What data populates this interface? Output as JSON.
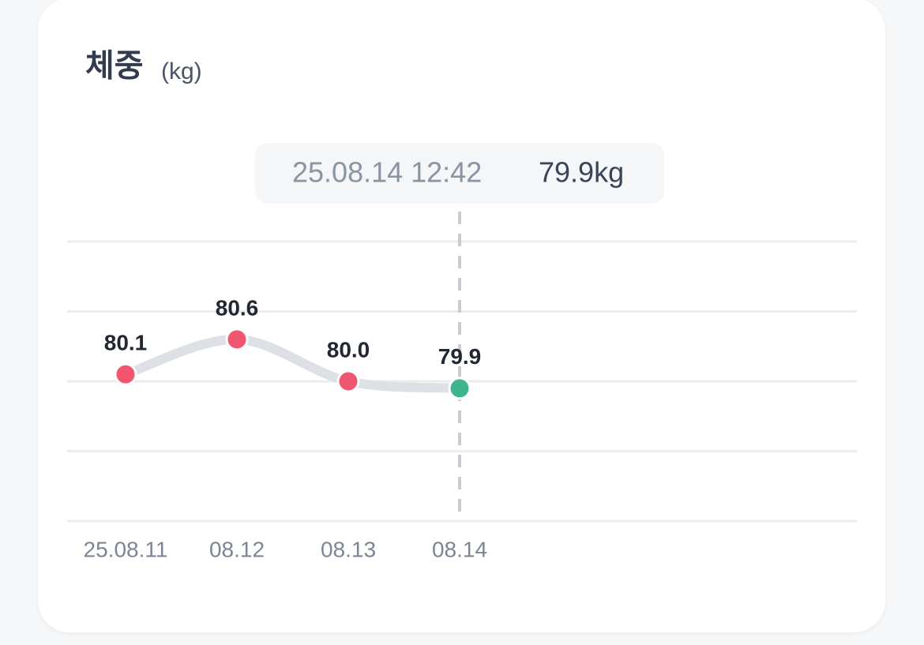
{
  "chart_data": {
    "type": "line",
    "title": "체중",
    "unit": "(kg)",
    "categories": [
      "25.08.11",
      "08.12",
      "08.13",
      "08.14"
    ],
    "values": [
      80.1,
      80.6,
      80.0,
      79.9
    ],
    "value_labels": [
      "80.1",
      "80.6",
      "80.0",
      "79.9"
    ],
    "color": "#f0566e",
    "line_color": "#dde0e5",
    "point_colors": [
      "#f0566e",
      "#f0566e",
      "#f0566e",
      "#3fb58e"
    ],
    "ylim": [
      78,
      82
    ],
    "yticks": [
      78,
      79,
      80,
      81,
      82
    ],
    "grid": true,
    "tooltip": {
      "time": "25.08.14 12:42",
      "value": "79.9kg"
    }
  }
}
